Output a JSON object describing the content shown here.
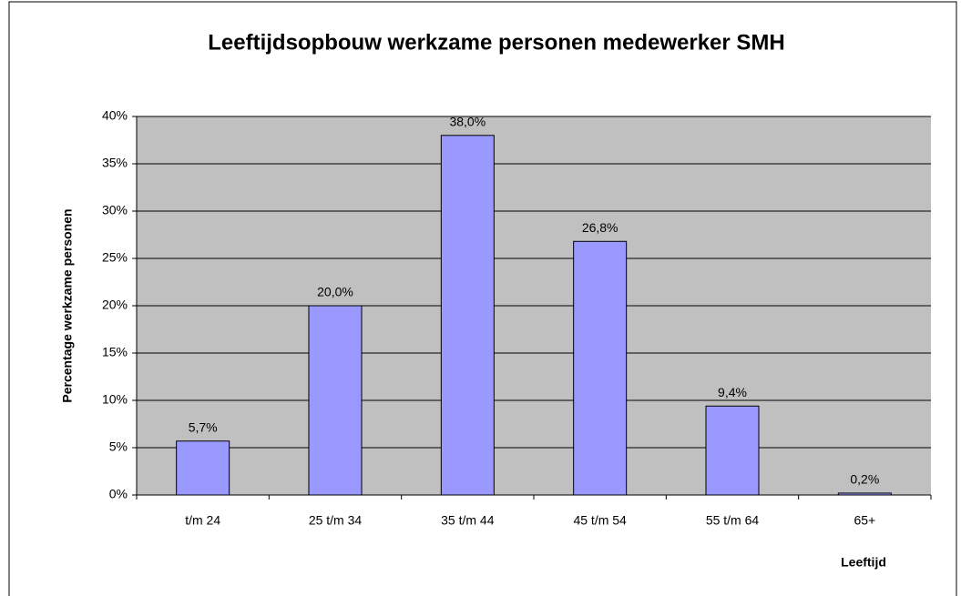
{
  "chart_data": {
    "type": "bar",
    "title": "Leeftijdsopbouw werkzame personen medewerker SMH",
    "y_label": "Percentage werkzame personen",
    "x_label": "Leeftijd",
    "categories": [
      "t/m 24",
      "25 t/m 34",
      "35 t/m 44",
      "45 t/m 54",
      "55 t/m 64",
      "65+"
    ],
    "values": [
      5.7,
      20.0,
      38.0,
      26.8,
      9.4,
      0.2
    ],
    "value_labels": [
      "5,7%",
      "20,0%",
      "38,0%",
      "26,8%",
      "9,4%",
      "0,2%"
    ],
    "color": "#9999ff",
    "ylim": [
      0,
      40
    ],
    "yticks": [
      {
        "value": 0,
        "label": "0%"
      },
      {
        "value": 5,
        "label": "5%"
      },
      {
        "value": 10,
        "label": "10%"
      },
      {
        "value": 15,
        "label": "15%"
      },
      {
        "value": 20,
        "label": "20%"
      },
      {
        "value": 25,
        "label": "25%"
      },
      {
        "value": 30,
        "label": "30%"
      },
      {
        "value": 35,
        "label": "35%"
      },
      {
        "value": 40,
        "label": "40%"
      }
    ],
    "grid": true
  }
}
